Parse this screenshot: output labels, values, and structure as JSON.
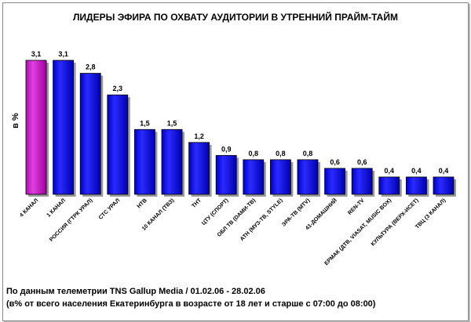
{
  "chart_data": {
    "type": "bar",
    "title": "ЛИДЕРЫ ЭФИРА ПО ОХВАТУ АУДИТОРИИ В УТРЕННИЙ ПРАЙМ-ТАЙМ",
    "ylabel": "в %",
    "xlabel": "",
    "categories": [
      "4 КАНАЛ",
      "1 КАНАЛ",
      "РОССИЯ (ГТРК УРАЛ)",
      "СТС УРАЛ",
      "НТВ",
      "10 КАНАЛ (ТВЗ)",
      "ТНТ",
      "ЦТУ (СПОРТ)",
      "ОБЛ ТВ (DАМИ-ТВ)",
      "АТН (МУЗ-ТВ, STYLE)",
      "ЭРА-ТВ (МТV)",
      "41-ДОМАШНИЙ",
      "REN-TV",
      "ЕРМАК (ДТВ, VIASAT, MUSIC BOX)",
      "КУЛЬТУРА (ВЕРХ-ИСЕТ)",
      "ТВЦ (3 КАНАЛ)"
    ],
    "values": [
      3.1,
      3.1,
      2.8,
      2.3,
      1.5,
      1.5,
      1.2,
      0.9,
      0.8,
      0.8,
      0.8,
      0.6,
      0.6,
      0.4,
      0.4,
      0.4
    ],
    "value_labels": [
      "3,1",
      "3,1",
      "2,8",
      "2,3",
      "1,5",
      "1,5",
      "1,2",
      "0,9",
      "0,8",
      "0,8",
      "0,8",
      "0,6",
      "0,6",
      "0,4",
      "0,4",
      "0,4"
    ],
    "ylim": [
      0,
      3.1
    ],
    "grid": false,
    "colors": {
      "highlight": "#cc33cc",
      "bar": "#1a1aff"
    },
    "highlight_index": 0
  },
  "notes": {
    "line1": "По данным телеметрии TNS Gallup Media / 01.02.06 - 28.02.06",
    "line2": "(в% от всего населения Екатеринбурга в возрасте от 18 лет и старше с 07:00 до 08:00)"
  }
}
